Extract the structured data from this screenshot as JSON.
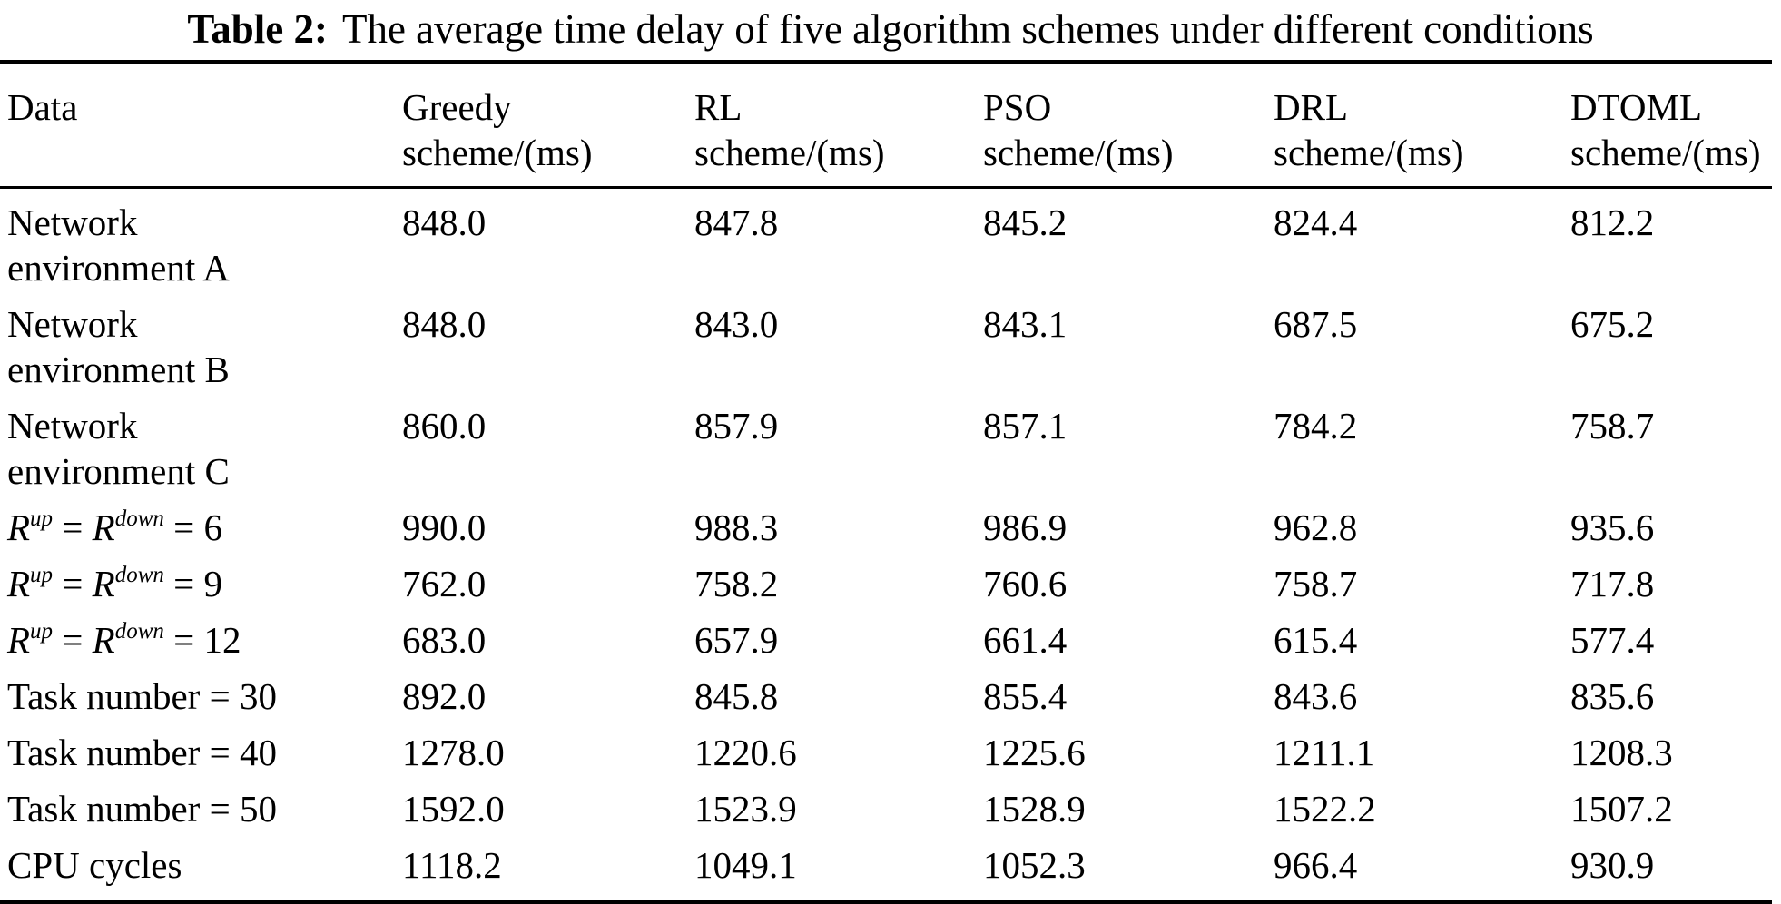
{
  "page": {
    "background_color": "#ffffff",
    "text_color": "#000000"
  },
  "title": {
    "label": "Table 2:",
    "text": "The average time delay of five algorithm schemes under different conditions"
  },
  "table": {
    "header": [
      {
        "lines": [
          "Data"
        ]
      },
      {
        "lines": [
          "Greedy",
          "scheme/(ms)"
        ]
      },
      {
        "lines": [
          "RL",
          "scheme/(ms)"
        ]
      },
      {
        "lines": [
          "PSO",
          "scheme/(ms)"
        ]
      },
      {
        "lines": [
          "DRL",
          "scheme/(ms)"
        ]
      },
      {
        "lines": [
          "DTOML",
          "scheme/(ms)"
        ]
      }
    ],
    "rows": [
      {
        "label": [
          {
            "t": "Network"
          },
          {
            "br": true
          },
          {
            "t": "environment A"
          }
        ],
        "values": [
          "848.0",
          "847.8",
          "845.2",
          "824.4",
          "812.2"
        ]
      },
      {
        "label": [
          {
            "t": "Network"
          },
          {
            "br": true
          },
          {
            "t": "environment B"
          }
        ],
        "values": [
          "848.0",
          "843.0",
          "843.1",
          "687.5",
          "675.2"
        ]
      },
      {
        "label": [
          {
            "t": "Network"
          },
          {
            "br": true
          },
          {
            "t": "environment C"
          }
        ],
        "values": [
          "860.0",
          "857.9",
          "857.1",
          "784.2",
          "758.7"
        ]
      },
      {
        "label": [
          {
            "t": "R",
            "s": "i"
          },
          {
            "t": "up",
            "s": "si"
          },
          {
            "t": " = "
          },
          {
            "t": "R",
            "s": "i"
          },
          {
            "t": "down",
            "s": "si"
          },
          {
            "t": " = 6"
          }
        ],
        "values": [
          "990.0",
          "988.3",
          "986.9",
          "962.8",
          "935.6"
        ]
      },
      {
        "label": [
          {
            "t": "R",
            "s": "i"
          },
          {
            "t": "up",
            "s": "si"
          },
          {
            "t": " = "
          },
          {
            "t": "R",
            "s": "i"
          },
          {
            "t": "down",
            "s": "si"
          },
          {
            "t": " = 9"
          }
        ],
        "values": [
          "762.0",
          "758.2",
          "760.6",
          "758.7",
          "717.8"
        ]
      },
      {
        "label": [
          {
            "t": "R",
            "s": "i"
          },
          {
            "t": "up",
            "s": "si"
          },
          {
            "t": " = "
          },
          {
            "t": "R",
            "s": "i"
          },
          {
            "t": "down",
            "s": "si"
          },
          {
            "t": " = 12"
          }
        ],
        "values": [
          "683.0",
          "657.9",
          "661.4",
          "615.4",
          "577.4"
        ]
      },
      {
        "label": [
          {
            "t": "Task number = 30"
          }
        ],
        "values": [
          "892.0",
          "845.8",
          "855.4",
          "843.6",
          "835.6"
        ]
      },
      {
        "label": [
          {
            "t": "Task number = 40"
          }
        ],
        "values": [
          "1278.0",
          "1220.6",
          "1225.6",
          "1211.1",
          "1208.3"
        ]
      },
      {
        "label": [
          {
            "t": "Task number = 50"
          }
        ],
        "values": [
          "1592.0",
          "1523.9",
          "1528.9",
          "1522.2",
          "1507.2"
        ]
      },
      {
        "label": [
          {
            "t": "CPU cycles"
          }
        ],
        "values": [
          "1118.2",
          "1049.1",
          "1052.3",
          "966.4",
          "930.9"
        ]
      }
    ]
  }
}
